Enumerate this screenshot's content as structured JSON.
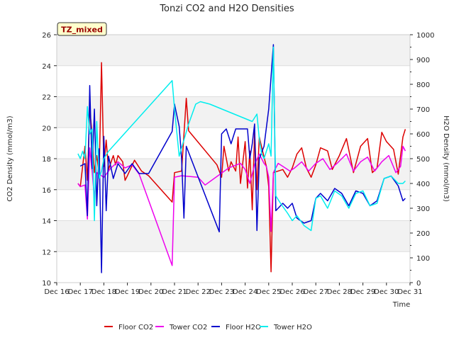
{
  "chart_data": {
    "type": "line",
    "title": "Tonzi CO2 and H2O Densities",
    "badge": "TZ_mixed",
    "xlabel": "Time",
    "ylabel_left": "CO2 Density (mmol/m3)",
    "ylabel_right": "H2O Density (mmol/m3)",
    "x_ticks": [
      "Dec 16",
      "Dec 17",
      "Dec 18",
      "Dec 19",
      "Dec 20",
      "Dec 21",
      "Dec 22",
      "Dec 23",
      "Dec 24",
      "Dec 25",
      "Dec 26",
      "Dec 27",
      "Dec 28",
      "Dec 29",
      "Dec 30",
      "Dec 31"
    ],
    "xlim": [
      16,
      31
    ],
    "ylim_left": [
      10,
      26
    ],
    "y_ticks_left": [
      10,
      12,
      14,
      16,
      18,
      20,
      22,
      24,
      26
    ],
    "ylim_right": [
      0,
      1000
    ],
    "y_ticks_right": [
      0,
      100,
      200,
      300,
      400,
      500,
      600,
      700,
      800,
      900,
      1000
    ],
    "series": [
      {
        "name": "Floor CO2",
        "axis": "left",
        "color": "#dd0000",
        "points": [
          [
            16.9,
            16.4
          ],
          [
            17.0,
            16.2
          ],
          [
            17.2,
            18.8
          ],
          [
            17.3,
            16.6
          ],
          [
            17.4,
            21.2
          ],
          [
            17.5,
            19.6
          ],
          [
            17.6,
            17.1
          ],
          [
            17.7,
            18.2
          ],
          [
            17.8,
            17.0
          ],
          [
            17.9,
            24.2
          ],
          [
            18.0,
            17.5
          ],
          [
            18.1,
            19.2
          ],
          [
            18.2,
            17.3
          ],
          [
            18.4,
            18.2
          ],
          [
            18.5,
            17.6
          ],
          [
            18.6,
            18.2
          ],
          [
            18.8,
            17.8
          ],
          [
            18.9,
            16.6
          ],
          [
            19.0,
            16.9
          ],
          [
            19.3,
            17.9
          ],
          [
            19.6,
            17.2
          ],
          [
            19.9,
            16.9
          ],
          [
            20.9,
            15.2
          ],
          [
            21.0,
            17.1
          ],
          [
            21.3,
            17.2
          ],
          [
            21.5,
            21.9
          ],
          [
            21.6,
            19.8
          ],
          [
            22.8,
            17.6
          ],
          [
            23.0,
            16.8
          ],
          [
            23.1,
            18.8
          ],
          [
            23.3,
            17.2
          ],
          [
            23.4,
            17.8
          ],
          [
            23.6,
            17.2
          ],
          [
            23.7,
            19.4
          ],
          [
            23.8,
            16.4
          ],
          [
            24.0,
            19.1
          ],
          [
            24.1,
            16.1
          ],
          [
            24.2,
            18.5
          ],
          [
            24.3,
            14.7
          ],
          [
            24.4,
            19.7
          ],
          [
            24.5,
            16.0
          ],
          [
            24.6,
            19.4
          ],
          [
            24.8,
            18.1
          ],
          [
            24.9,
            17.5
          ],
          [
            25.0,
            16.2
          ],
          [
            25.1,
            10.7
          ],
          [
            25.2,
            17.1
          ],
          [
            25.6,
            17.3
          ],
          [
            25.8,
            16.8
          ],
          [
            26.0,
            17.4
          ],
          [
            26.2,
            18.3
          ],
          [
            26.4,
            18.7
          ],
          [
            26.6,
            17.4
          ],
          [
            26.8,
            16.8
          ],
          [
            27.0,
            17.6
          ],
          [
            27.2,
            18.7
          ],
          [
            27.5,
            18.5
          ],
          [
            27.7,
            17.3
          ],
          [
            28.0,
            18.2
          ],
          [
            28.3,
            19.3
          ],
          [
            28.6,
            17.1
          ],
          [
            28.9,
            18.8
          ],
          [
            29.2,
            19.3
          ],
          [
            29.4,
            17.1
          ],
          [
            29.6,
            17.4
          ],
          [
            29.8,
            19.7
          ],
          [
            30.0,
            19.1
          ],
          [
            30.3,
            18.6
          ],
          [
            30.5,
            17.0
          ],
          [
            30.7,
            19.4
          ],
          [
            30.8,
            19.9
          ]
        ]
      },
      {
        "name": "Tower CO2",
        "axis": "left",
        "color": "#ee00ee",
        "points": [
          [
            16.9,
            16.4
          ],
          [
            17.0,
            16.2
          ],
          [
            17.2,
            16.3
          ],
          [
            17.3,
            14.1
          ],
          [
            17.4,
            18.7
          ],
          [
            17.5,
            17.2
          ],
          [
            17.6,
            15.5
          ],
          [
            17.7,
            17.1
          ],
          [
            17.8,
            17.0
          ],
          [
            17.9,
            16.9
          ],
          [
            18.0,
            16.8
          ],
          [
            18.3,
            17.4
          ],
          [
            18.6,
            17.8
          ],
          [
            18.9,
            17.4
          ],
          [
            19.2,
            17.6
          ],
          [
            19.5,
            17.0
          ],
          [
            20.9,
            11.1
          ],
          [
            21.0,
            16.8
          ],
          [
            21.3,
            16.9
          ],
          [
            22.0,
            16.8
          ],
          [
            22.3,
            16.3
          ],
          [
            23.3,
            17.4
          ],
          [
            23.8,
            17.7
          ],
          [
            24.0,
            17.3
          ],
          [
            24.2,
            16.4
          ],
          [
            24.4,
            17.6
          ],
          [
            24.6,
            18.3
          ],
          [
            24.8,
            17.7
          ],
          [
            24.9,
            17.5
          ],
          [
            25.0,
            16.8
          ],
          [
            25.1,
            13.3
          ],
          [
            25.2,
            17.1
          ],
          [
            25.4,
            17.7
          ],
          [
            25.6,
            17.5
          ],
          [
            25.9,
            17.2
          ],
          [
            26.1,
            17.4
          ],
          [
            26.4,
            17.8
          ],
          [
            26.7,
            17.2
          ],
          [
            27.0,
            17.7
          ],
          [
            27.3,
            18.0
          ],
          [
            27.6,
            17.3
          ],
          [
            27.9,
            17.7
          ],
          [
            28.3,
            18.3
          ],
          [
            28.6,
            17.2
          ],
          [
            28.9,
            17.8
          ],
          [
            29.2,
            18.1
          ],
          [
            29.5,
            17.2
          ],
          [
            29.8,
            17.8
          ],
          [
            30.1,
            18.2
          ],
          [
            30.4,
            17.1
          ],
          [
            30.6,
            17.5
          ],
          [
            30.7,
            18.8
          ],
          [
            30.8,
            18.5
          ]
        ]
      },
      {
        "name": "Floor H2O",
        "axis": "right",
        "color": "#0000cc",
        "points": [
          [
            17.0,
            470
          ],
          [
            17.2,
            480
          ],
          [
            17.3,
            270
          ],
          [
            17.4,
            795
          ],
          [
            17.5,
            460
          ],
          [
            17.6,
            700
          ],
          [
            17.7,
            310
          ],
          [
            17.8,
            540
          ],
          [
            17.9,
            40
          ],
          [
            18.0,
            590
          ],
          [
            18.1,
            290
          ],
          [
            18.2,
            510
          ],
          [
            18.4,
            420
          ],
          [
            18.6,
            480
          ],
          [
            18.9,
            440
          ],
          [
            19.2,
            480
          ],
          [
            19.5,
            440
          ],
          [
            19.9,
            440
          ],
          [
            20.9,
            610
          ],
          [
            21.0,
            720
          ],
          [
            21.2,
            630
          ],
          [
            21.3,
            500
          ],
          [
            21.4,
            260
          ],
          [
            21.5,
            550
          ],
          [
            22.9,
            205
          ],
          [
            23.0,
            600
          ],
          [
            23.2,
            620
          ],
          [
            23.4,
            560
          ],
          [
            23.6,
            620
          ],
          [
            23.9,
            620
          ],
          [
            24.1,
            620
          ],
          [
            24.2,
            500
          ],
          [
            24.3,
            560
          ],
          [
            24.4,
            640
          ],
          [
            24.5,
            210
          ],
          [
            24.6,
            500
          ],
          [
            24.8,
            550
          ],
          [
            25.0,
            700
          ],
          [
            25.2,
            960
          ],
          [
            25.3,
            290
          ],
          [
            25.5,
            310
          ],
          [
            25.6,
            320
          ],
          [
            25.8,
            300
          ],
          [
            26.0,
            320
          ],
          [
            26.2,
            260
          ],
          [
            26.5,
            240
          ],
          [
            26.8,
            250
          ],
          [
            27.0,
            340
          ],
          [
            27.2,
            360
          ],
          [
            27.5,
            330
          ],
          [
            27.8,
            380
          ],
          [
            28.1,
            360
          ],
          [
            28.4,
            310
          ],
          [
            28.7,
            370
          ],
          [
            29.0,
            360
          ],
          [
            29.3,
            310
          ],
          [
            29.6,
            330
          ],
          [
            29.9,
            420
          ],
          [
            30.2,
            430
          ],
          [
            30.5,
            390
          ],
          [
            30.7,
            330
          ],
          [
            30.8,
            340
          ]
        ]
      },
      {
        "name": "Tower H2O",
        "axis": "right",
        "color": "#00eeee",
        "points": [
          [
            16.9,
            520
          ],
          [
            17.0,
            500
          ],
          [
            17.1,
            530
          ],
          [
            17.2,
            500
          ],
          [
            17.3,
            710
          ],
          [
            17.4,
            600
          ],
          [
            17.5,
            620
          ],
          [
            17.6,
            250
          ],
          [
            17.7,
            650
          ],
          [
            17.8,
            420
          ],
          [
            17.9,
            450
          ],
          [
            18.0,
            500
          ],
          [
            18.2,
            530
          ],
          [
            20.9,
            815
          ],
          [
            21.0,
            700
          ],
          [
            21.2,
            510
          ],
          [
            21.6,
            640
          ],
          [
            21.9,
            720
          ],
          [
            22.1,
            730
          ],
          [
            22.5,
            720
          ],
          [
            24.3,
            650
          ],
          [
            24.5,
            680
          ],
          [
            24.6,
            580
          ],
          [
            24.7,
            520
          ],
          [
            24.8,
            500
          ],
          [
            25.0,
            560
          ],
          [
            25.1,
            510
          ],
          [
            25.2,
            950
          ],
          [
            25.3,
            350
          ],
          [
            25.5,
            320
          ],
          [
            25.8,
            280
          ],
          [
            26.0,
            250
          ],
          [
            26.2,
            270
          ],
          [
            26.5,
            230
          ],
          [
            26.8,
            210
          ],
          [
            27.0,
            340
          ],
          [
            27.2,
            350
          ],
          [
            27.5,
            300
          ],
          [
            27.8,
            370
          ],
          [
            28.1,
            350
          ],
          [
            28.4,
            300
          ],
          [
            28.7,
            360
          ],
          [
            29.0,
            370
          ],
          [
            29.3,
            310
          ],
          [
            29.6,
            320
          ],
          [
            29.9,
            420
          ],
          [
            30.2,
            430
          ],
          [
            30.5,
            400
          ],
          [
            30.7,
            400
          ],
          [
            30.8,
            410
          ]
        ]
      }
    ],
    "legend_position": "bottom-center"
  }
}
